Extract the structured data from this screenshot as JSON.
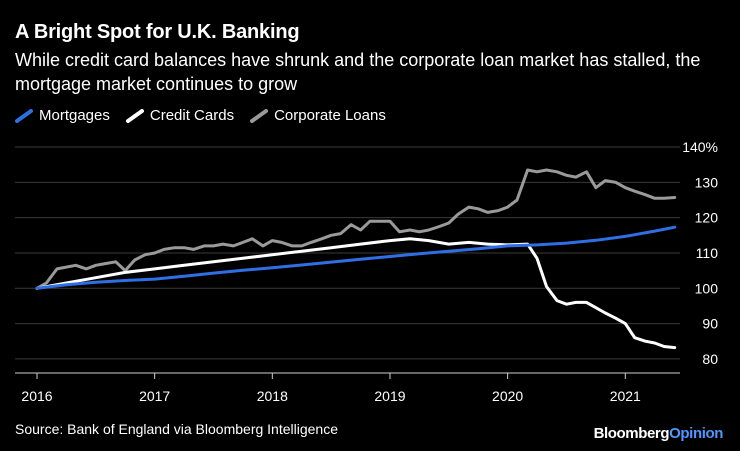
{
  "title": "A Bright Spot for U.K. Banking",
  "subtitle": "While credit card balances have shrunk and the corporate loan market has stalled, the mortgage market continues to grow",
  "source": "Source: Bank of England via Bloomberg Intelligence",
  "brand": {
    "part1": "Bloomberg",
    "part2": "Opinion"
  },
  "colors": {
    "mortgages": "#2f6fe4",
    "credit_cards": "#ffffff",
    "corporate_loans": "#9a9a9a",
    "grid": "#3a3a3a",
    "background": "#000000"
  },
  "chart_data": {
    "type": "line",
    "title": "A Bright Spot for U.K. Banking",
    "xlabel": "",
    "ylabel": "",
    "xlim": [
      2016.0,
      2021.55
    ],
    "ylim": [
      76,
      142
    ],
    "x_ticks": [
      "2016",
      "2017",
      "2018",
      "2019",
      "2020",
      "2021"
    ],
    "y_ticks": [
      "80",
      "90",
      "100",
      "110",
      "120",
      "130",
      "140%"
    ],
    "y_tick_values": [
      80,
      90,
      100,
      110,
      120,
      130,
      140
    ],
    "legend_position": "top-left",
    "grid": "horizontal",
    "series": [
      {
        "name": "Mortgages",
        "color": "#2f6fe4",
        "x": [
          2016.0,
          2016.25,
          2016.5,
          2016.75,
          2017.0,
          2017.25,
          2017.5,
          2017.75,
          2018.0,
          2018.25,
          2018.5,
          2018.75,
          2019.0,
          2019.25,
          2019.5,
          2019.75,
          2020.0,
          2020.25,
          2020.5,
          2020.75,
          2021.0,
          2021.25,
          2021.42
        ],
        "values": [
          100,
          101,
          101.7,
          102.2,
          102.6,
          103.4,
          104.3,
          105.1,
          105.8,
          106.6,
          107.4,
          108.2,
          109.0,
          109.8,
          110.5,
          111.2,
          112.0,
          112.3,
          112.8,
          113.6,
          114.7,
          116.2,
          117.3
        ]
      },
      {
        "name": "Credit Cards",
        "color": "#ffffff",
        "x": [
          2016.0,
          2016.25,
          2016.5,
          2016.75,
          2017.0,
          2017.25,
          2017.5,
          2017.75,
          2018.0,
          2018.25,
          2018.5,
          2018.75,
          2019.0,
          2019.17,
          2019.33,
          2019.5,
          2019.67,
          2019.83,
          2020.0,
          2020.17,
          2020.25,
          2020.33,
          2020.42,
          2020.5,
          2020.58,
          2020.67,
          2020.75,
          2020.83,
          2020.92,
          2021.0,
          2021.08,
          2021.17,
          2021.25,
          2021.33,
          2021.42
        ],
        "values": [
          100,
          101.5,
          103,
          104.5,
          105.5,
          106.5,
          107.5,
          108.5,
          109.5,
          110.5,
          111.5,
          112.5,
          113.5,
          114,
          113.5,
          112.5,
          113,
          112.5,
          112.3,
          112.5,
          108.5,
          100.5,
          96.5,
          95.5,
          96,
          96,
          94.5,
          93,
          91.5,
          90,
          86,
          85,
          84.5,
          83.5,
          83.2
        ]
      },
      {
        "name": "Corporate Loans",
        "color": "#9a9a9a",
        "x": [
          2016.0,
          2016.08,
          2016.17,
          2016.33,
          2016.42,
          2016.5,
          2016.58,
          2016.67,
          2016.75,
          2016.83,
          2016.92,
          2017.0,
          2017.08,
          2017.17,
          2017.25,
          2017.33,
          2017.42,
          2017.5,
          2017.58,
          2017.67,
          2017.75,
          2017.83,
          2017.92,
          2018.0,
          2018.08,
          2018.17,
          2018.25,
          2018.33,
          2018.42,
          2018.5,
          2018.58,
          2018.67,
          2018.75,
          2018.83,
          2018.92,
          2019.0,
          2019.08,
          2019.17,
          2019.25,
          2019.33,
          2019.42,
          2019.5,
          2019.58,
          2019.67,
          2019.75,
          2019.83,
          2019.92,
          2020.0,
          2020.08,
          2020.17,
          2020.25,
          2020.33,
          2020.42,
          2020.5,
          2020.58,
          2020.67,
          2020.75,
          2020.83,
          2020.92,
          2021.0,
          2021.08,
          2021.17,
          2021.25,
          2021.33,
          2021.42
        ],
        "values": [
          100,
          101.5,
          105.5,
          106.5,
          105.5,
          106.5,
          107,
          107.5,
          105,
          108,
          109.5,
          110,
          111,
          111.5,
          111.5,
          111,
          112,
          112,
          112.5,
          112,
          113,
          114,
          112,
          113.5,
          113,
          112,
          112,
          113,
          114,
          115,
          115.5,
          118,
          116.5,
          119,
          119,
          119,
          116,
          116.5,
          116,
          116.5,
          117.5,
          118.5,
          121,
          123,
          122.5,
          121.5,
          122,
          123,
          125,
          133.5,
          133,
          133.5,
          133,
          132,
          131.5,
          133,
          128.5,
          130.5,
          130,
          128.5,
          127.5,
          126.5,
          125.5,
          125.5,
          125.7
        ]
      }
    ]
  }
}
